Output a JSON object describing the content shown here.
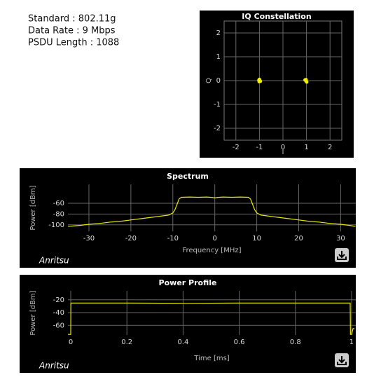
{
  "info": [
    "Standard : 802.11g",
    "Data Rate : 9 Mbps",
    "PSDU Length : 1088"
  ],
  "chart_data": [
    {
      "type": "scatter",
      "title": "IQ Constellation",
      "x_label": "I",
      "y_label": "Q",
      "color": "#f0f000",
      "x": [
        -1.02,
        -1.0,
        -0.98,
        -0.96,
        -1.01,
        0.94,
        0.97,
        0.99,
        1.01,
        0.98
      ],
      "y": [
        0.02,
        0.05,
        0.0,
        -0.03,
        -0.04,
        0.03,
        0.0,
        -0.03,
        -0.06,
        0.04
      ],
      "xlim": [
        -2.5,
        2.5
      ],
      "ylim": [
        -2.5,
        2.5
      ],
      "xticks": [
        -2,
        -1,
        0,
        1,
        2
      ],
      "yticks": [
        -2,
        -1,
        0,
        1,
        2
      ],
      "grid": true
    },
    {
      "type": "line",
      "title": "Spectrum",
      "x_label": "Frequency [MHz]",
      "y_label": "Power [dBm]",
      "logo": "Anritsu",
      "x": [
        -35,
        -32,
        -30,
        -27,
        -25,
        -22,
        -20,
        -17,
        -15,
        -13,
        -11,
        -10,
        -9.5,
        -9,
        -8.5,
        -8,
        -6,
        -4,
        -2,
        -1,
        0,
        1,
        2,
        4,
        6,
        8,
        8.5,
        9,
        9.5,
        10,
        11,
        13,
        15,
        17,
        20,
        22,
        25,
        27,
        30,
        32,
        33.5
      ],
      "series": [
        {
          "color": "#e8e800",
          "values": [
            -103,
            -101,
            -99,
            -97,
            -95,
            -93,
            -91,
            -88,
            -86,
            -84,
            -82,
            -78,
            -72,
            -62,
            -52,
            -49,
            -48.5,
            -49,
            -48.5,
            -49,
            -50,
            -49,
            -48.5,
            -49,
            -48.5,
            -49,
            -52,
            -62,
            -72,
            -78,
            -82,
            -84,
            -86,
            -88,
            -91,
            -93,
            -95,
            -97,
            -99,
            -101,
            -103
          ]
        }
      ],
      "xlim": [
        -35,
        33.6
      ],
      "ylim": [
        -112,
        -25
      ],
      "xticks": [
        -30,
        -20,
        -10,
        0,
        10,
        20,
        30
      ],
      "yticks": [
        -60,
        -80,
        -100
      ],
      "grid": true
    },
    {
      "type": "line",
      "title": "Power Profile",
      "x_label": "Time [ms]",
      "y_label": "Power [dBm]",
      "logo": "Anritsu",
      "x": [
        -0.01,
        0,
        0.0005,
        0.002,
        0.2,
        0.4,
        0.6,
        0.8,
        0.99,
        0.995,
        0.996,
        1.0,
        1.005,
        1.01
      ],
      "series": [
        {
          "color": "#e8e800",
          "values": [
            -74,
            -74,
            -25,
            -25,
            -25,
            -25.5,
            -25,
            -25,
            -25,
            -25,
            -74,
            -74,
            -65,
            -65
          ]
        }
      ],
      "xlim": [
        -0.01,
        1.015
      ],
      "ylim": [
        -75,
        -6
      ],
      "xticks": [
        0,
        0.2,
        0.4,
        0.6,
        0.8,
        1
      ],
      "yticks": [
        -20,
        -40,
        -60
      ],
      "grid": true
    }
  ]
}
